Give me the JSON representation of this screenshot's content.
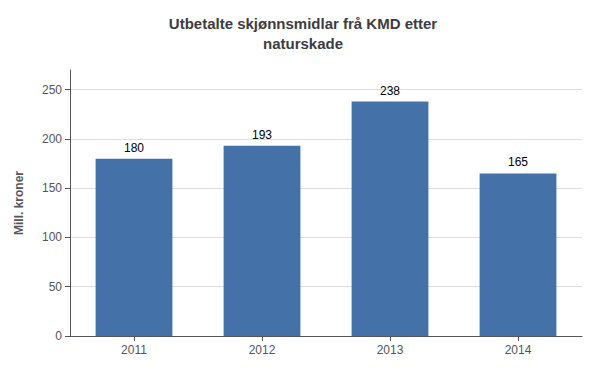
{
  "chart_data": {
    "type": "bar",
    "title": "Utbetalte skjønnsmidlar frå KMD etter\nnaturskade",
    "ylabel": "Mill. kroner",
    "categories": [
      "2011",
      "2012",
      "2013",
      "2014"
    ],
    "values": [
      180,
      193,
      238,
      165
    ],
    "color": "#4472a8",
    "ylim": [
      0,
      270
    ],
    "yticks": [
      0,
      50,
      100,
      150,
      200,
      250
    ],
    "grid": true,
    "data_labels": true
  }
}
